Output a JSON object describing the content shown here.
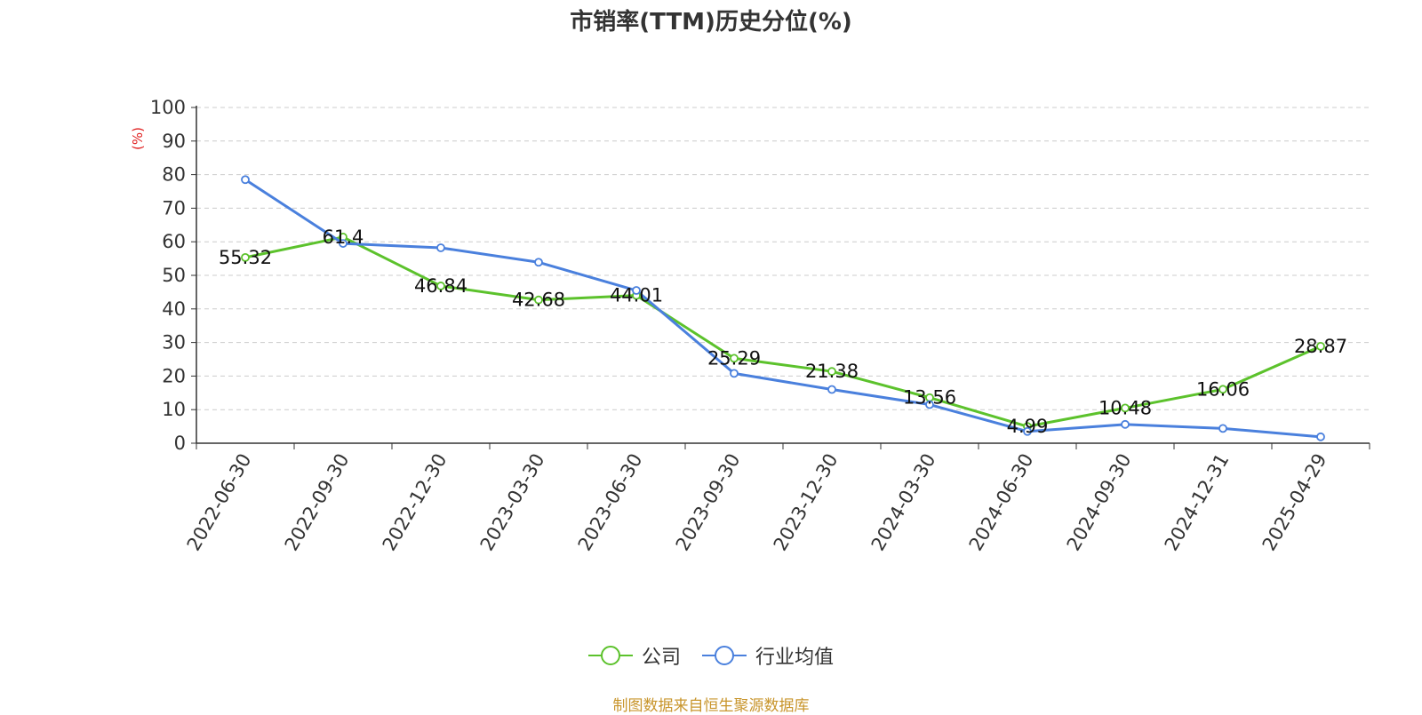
{
  "source_note": "制图数据来自恒生聚源数据库",
  "chart_data": {
    "type": "line",
    "title": "市销率(TTM)历史分位(%)",
    "ylabel": "(%)",
    "xlabel": "",
    "ylim": [
      0,
      100
    ],
    "yticks": [
      0,
      10,
      20,
      30,
      40,
      50,
      60,
      70,
      80,
      90,
      100
    ],
    "grid": true,
    "legend_position": "bottom",
    "categories": [
      "2022-06-30",
      "2022-09-30",
      "2022-12-30",
      "2023-03-30",
      "2023-06-30",
      "2023-09-30",
      "2023-12-30",
      "2024-03-30",
      "2024-06-30",
      "2024-09-30",
      "2024-12-31",
      "2025-04-29"
    ],
    "series": [
      {
        "name": "公司",
        "color": "#5cc22c",
        "values": [
          55.32,
          61.4,
          46.84,
          42.68,
          44.01,
          25.29,
          21.38,
          13.56,
          4.99,
          10.48,
          16.06,
          28.87
        ],
        "labels": [
          "55.32",
          "61.4",
          "46.84",
          "42.68",
          "44.01",
          "25.29",
          "21.38",
          "13.56",
          "4.99",
          "10.48",
          "16.06",
          "28.87"
        ]
      },
      {
        "name": "行业均值",
        "color": "#4a80dd",
        "values": [
          78.5,
          59.5,
          58.2,
          53.9,
          45.5,
          20.8,
          16.0,
          11.5,
          3.5,
          5.6,
          4.4,
          1.9
        ]
      }
    ]
  }
}
